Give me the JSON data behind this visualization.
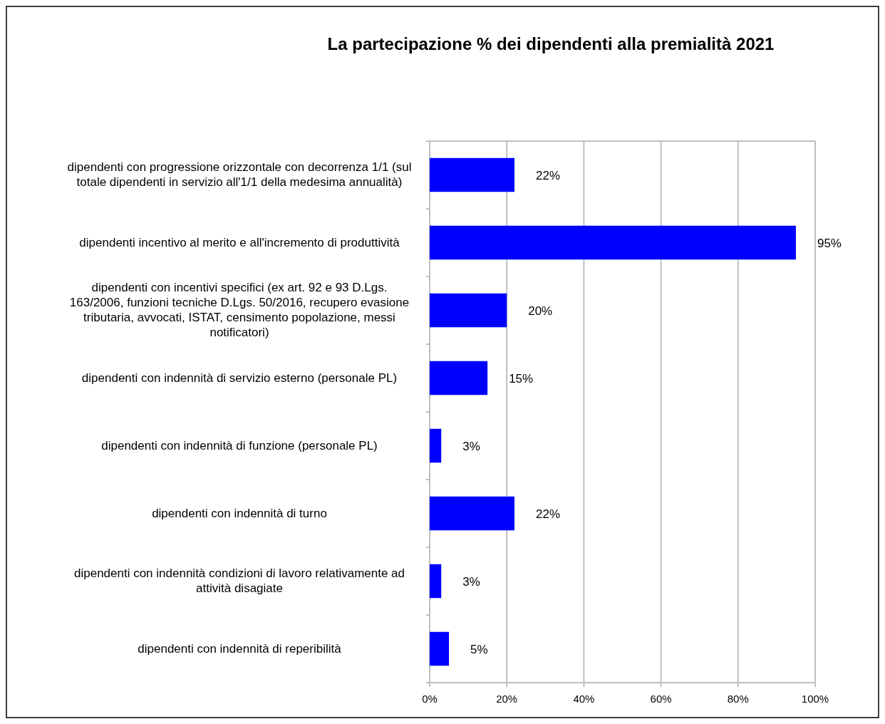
{
  "chart_data": {
    "type": "bar",
    "orientation": "horizontal",
    "title": "La partecipazione % dei dipendenti alla premialità 2021",
    "categories": [
      "dipendenti con progressione orizzontale con decorrenza 1/1 (sul totale dipendenti in servizio all'1/1 della medesima annualità)",
      "dipendenti incentivo al merito e all'incremento di produttività",
      "dipendenti con incentivi specifici (ex art. 92 e 93 D.Lgs. 163/2006, funzioni tecniche D.Lgs. 50/2016, recupero evasione tributaria, avvocati, ISTAT, censimento popolazione, messi notificatori)",
      "dipendenti con indennità di servizio esterno (personale PL)",
      "dipendenti con indennità di funzione (personale PL)",
      "dipendenti con indennità di turno",
      "dipendenti con indennità condizioni di lavoro relativamente ad attività disagiate",
      "dipendenti con indennità di reperibilità"
    ],
    "values": [
      22,
      95,
      20,
      15,
      3,
      22,
      3,
      5
    ],
    "color": "#0000ff",
    "value_labels": [
      "22%",
      "95%",
      "20%",
      "15%",
      "3%",
      "22%",
      "3%",
      "5%"
    ],
    "xlim": [
      0,
      100
    ],
    "xticks": [
      {
        "value": 0,
        "label": "0%"
      },
      {
        "value": 20,
        "label": "20%"
      },
      {
        "value": 40,
        "label": "40%"
      },
      {
        "value": 60,
        "label": "60%"
      },
      {
        "value": 80,
        "label": "80%"
      },
      {
        "value": 100,
        "label": "100%"
      }
    ],
    "grid": "x"
  }
}
